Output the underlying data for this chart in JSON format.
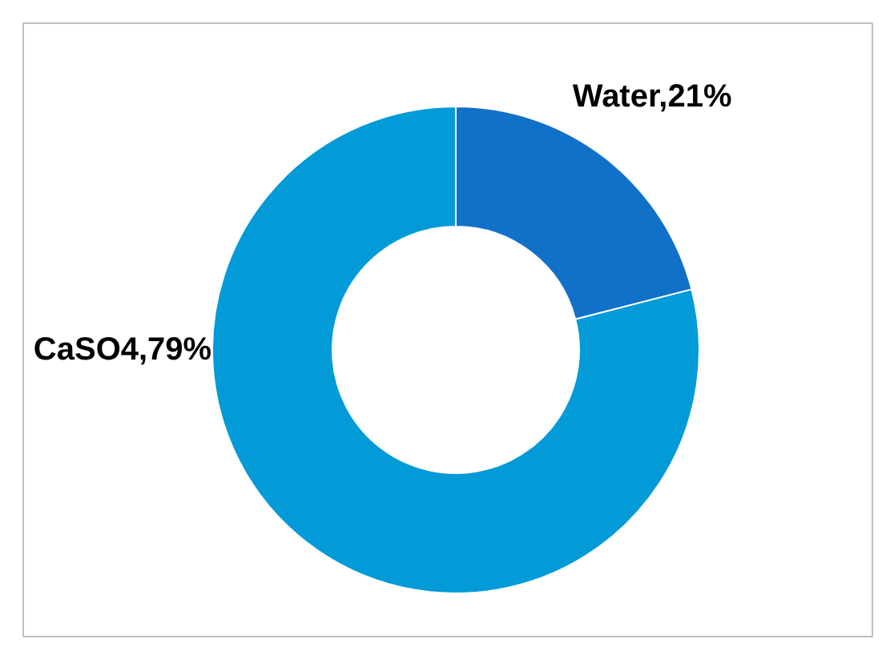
{
  "chart_data": {
    "type": "donut",
    "categories": [
      "Water,21%",
      "CaSO4,79%"
    ],
    "values": [
      21,
      79
    ],
    "colors": [
      "#1170c8",
      "#039ad8"
    ]
  }
}
